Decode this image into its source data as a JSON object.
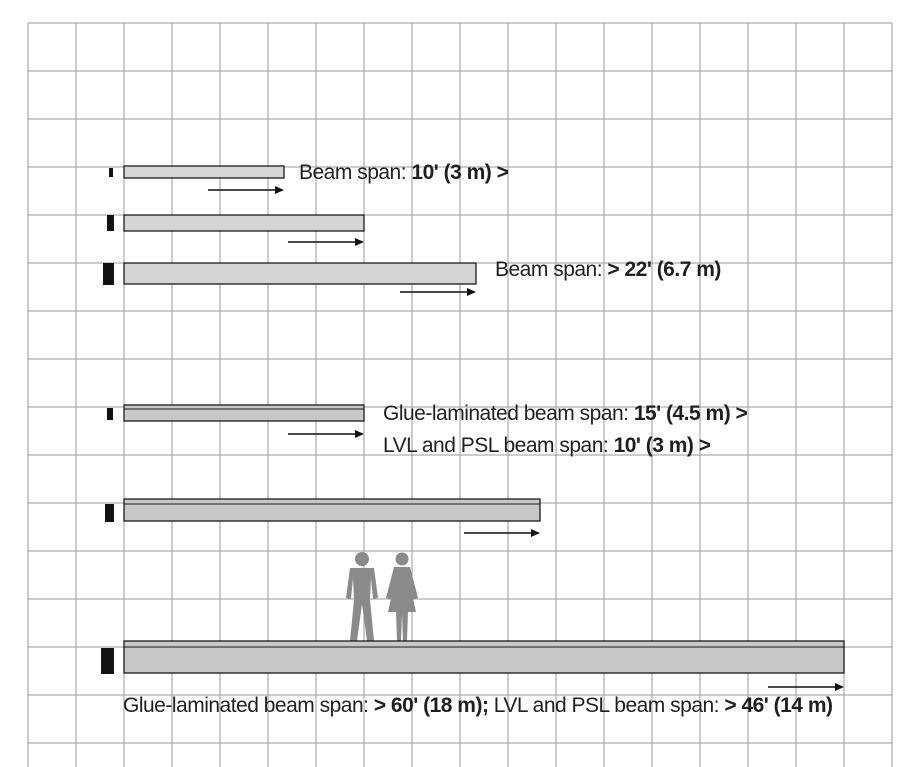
{
  "beams": [
    {
      "id": "beam-1",
      "label": {
        "prefix": "Beam span: ",
        "value": "10' (3 m) >"
      }
    },
    {
      "id": "beam-2",
      "label": null
    },
    {
      "id": "beam-3",
      "label": {
        "prefix": "Beam span: ",
        "value": "> 22' (6.7 m)"
      }
    },
    {
      "id": "beam-4",
      "label": null
    },
    {
      "id": "beam-5",
      "label": null
    },
    {
      "id": "beam-6",
      "label": null
    }
  ],
  "labels": {
    "glulam_short": {
      "prefix": "Glue-laminated beam span: ",
      "value": "15' (4.5 m) >"
    },
    "lvl_short": {
      "prefix": "LVL and PSL beam span: ",
      "value": "10' (3 m) >"
    },
    "bottom": {
      "glulam_prefix": "Glue-laminated beam span: ",
      "glulam_value": "> 60' (18 m);",
      "lvl_prefix": " LVL and PSL beam span: ",
      "lvl_value": "> 46' (14 m)"
    }
  },
  "colors": {
    "grid": "#9a9a9a",
    "beam_fill": "#d4d4d4",
    "beam_fill_dark": "#c4c4c4",
    "outline": "#1a1a1a",
    "figures": "#8a8a8a"
  },
  "figures": {
    "icon": "man-and-woman-scale-figures"
  }
}
